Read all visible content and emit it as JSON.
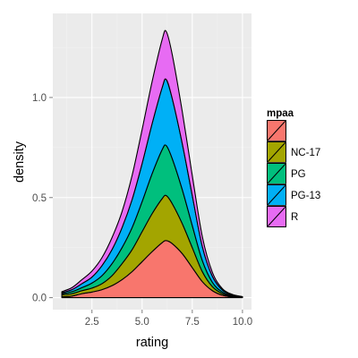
{
  "chart_data": {
    "type": "area",
    "stacked": true,
    "xlabel": "rating",
    "ylabel": "density",
    "xlim": [
      0.55,
      10.45
    ],
    "ylim": [
      -0.06,
      1.42
    ],
    "x_ticks": [
      2.5,
      5.0,
      7.5,
      10.0
    ],
    "x_tick_labels": [
      "2.5",
      "5.0",
      "7.5",
      "10.0"
    ],
    "y_ticks": [
      0.0,
      0.5,
      1.0
    ],
    "y_tick_labels": [
      "0.0",
      "0.5",
      "1.0"
    ],
    "grid": true,
    "panel_background": "#EBEBEB",
    "legend": {
      "title": "mpaa",
      "position": "right",
      "entries": [
        {
          "label": "",
          "color": "#F8766D"
        },
        {
          "label": "NC-17",
          "color": "#A3A500"
        },
        {
          "label": "PG",
          "color": "#00BF7D"
        },
        {
          "label": "PG-13",
          "color": "#00B0F6"
        },
        {
          "label": "R",
          "color": "#E76BF3"
        }
      ]
    },
    "x": [
      1.0,
      1.5,
      2.0,
      2.5,
      3.0,
      3.5,
      4.0,
      4.5,
      5.0,
      5.5,
      6.0,
      6.2,
      6.5,
      7.0,
      7.5,
      8.0,
      8.5,
      9.0,
      9.5,
      10.0
    ],
    "series": [
      {
        "name": "",
        "color": "#F8766D",
        "values": [
          0.005,
          0.008,
          0.02,
          0.028,
          0.04,
          0.06,
          0.09,
          0.13,
          0.18,
          0.23,
          0.275,
          0.285,
          0.27,
          0.22,
          0.15,
          0.08,
          0.035,
          0.012,
          0.004,
          0.001
        ]
      },
      {
        "name": "NC-17",
        "color": "#A3A500",
        "values": [
          0.01,
          0.012,
          0.015,
          0.02,
          0.03,
          0.05,
          0.08,
          0.11,
          0.15,
          0.19,
          0.22,
          0.225,
          0.2,
          0.15,
          0.1,
          0.05,
          0.02,
          0.008,
          0.003,
          0.001
        ]
      },
      {
        "name": "PG",
        "color": "#00BF7D",
        "values": [
          0.005,
          0.01,
          0.015,
          0.025,
          0.04,
          0.06,
          0.08,
          0.11,
          0.15,
          0.2,
          0.245,
          0.25,
          0.225,
          0.17,
          0.11,
          0.055,
          0.022,
          0.008,
          0.003,
          0.001
        ]
      },
      {
        "name": "PG-13",
        "color": "#00B0F6",
        "values": [
          0.005,
          0.01,
          0.02,
          0.03,
          0.05,
          0.07,
          0.1,
          0.14,
          0.19,
          0.25,
          0.31,
          0.33,
          0.3,
          0.23,
          0.15,
          0.07,
          0.03,
          0.01,
          0.004,
          0.001
        ]
      },
      {
        "name": "R",
        "color": "#E76BF3",
        "values": [
          0.005,
          0.01,
          0.02,
          0.03,
          0.04,
          0.06,
          0.08,
          0.12,
          0.17,
          0.21,
          0.24,
          0.24,
          0.22,
          0.16,
          0.1,
          0.05,
          0.02,
          0.007,
          0.002,
          0.001
        ]
      }
    ]
  }
}
